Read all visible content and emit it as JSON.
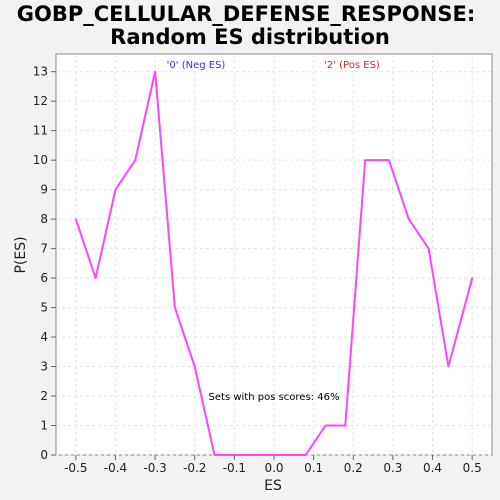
{
  "chart_data": {
    "type": "line",
    "title": [
      "GOBP_CELLULAR_DEFENSE_RESPONSE:",
      "Random ES distribution"
    ],
    "xlabel": "ES",
    "ylabel": "P(ES)",
    "xlim": [
      -0.55,
      0.55
    ],
    "ylim": [
      0,
      13.6
    ],
    "xticks": [
      -0.5,
      -0.4,
      -0.3,
      -0.2,
      -0.1,
      0.0,
      0.1,
      0.2,
      0.3,
      0.4,
      0.5
    ],
    "xtick_labels": [
      "-0.5",
      "-0.4",
      "-0.3",
      "-0.2",
      "-0.1",
      "0.0",
      "0.1",
      "0.2",
      "0.3",
      "0.4",
      "0.5"
    ],
    "yticks": [
      0,
      1,
      2,
      3,
      4,
      5,
      6,
      7,
      8,
      9,
      10,
      11,
      12,
      13
    ],
    "ytick_labels": [
      "0",
      "1",
      "2",
      "3",
      "4",
      "5",
      "6",
      "7",
      "8",
      "9",
      "10",
      "11",
      "12",
      "13"
    ],
    "grid": true,
    "series": [
      {
        "color": "#ff44ff",
        "x": [
          -0.5,
          -0.45,
          -0.4,
          -0.35,
          -0.3,
          -0.25,
          -0.2,
          -0.15,
          -0.1,
          -0.05,
          0.0,
          0.05,
          0.08,
          0.13,
          0.18,
          0.23,
          0.29,
          0.34,
          0.39,
          0.44,
          0.5
        ],
        "y": [
          8,
          6,
          9,
          10,
          13,
          5,
          3,
          0,
          0,
          0,
          0,
          0,
          0,
          1,
          1,
          10,
          10,
          8,
          7,
          3,
          6
        ]
      }
    ],
    "legend": [
      {
        "label": "'0' (Neg ES)",
        "color": "#3333cc"
      },
      {
        "label": "'2' (Pos ES)",
        "color": "#dd2222"
      }
    ],
    "annotation": "Sets with pos scores: 46%"
  }
}
